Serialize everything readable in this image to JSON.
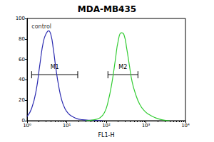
{
  "chart_data": {
    "type": "line",
    "title": "MDA-MB435",
    "x_label": "FL1-H",
    "log": "x",
    "xlim": [
      1,
      10000
    ],
    "xticks": [
      {
        "value": 1,
        "label": "10⁰"
      },
      {
        "value": 10,
        "label": "10¹"
      },
      {
        "value": 100,
        "label": "10²"
      },
      {
        "value": 1000,
        "label": "10³"
      },
      {
        "value": 10000,
        "label": "10⁴"
      }
    ],
    "ylim": [
      0,
      100
    ],
    "yticks": [
      0,
      20,
      40,
      60,
      80,
      100
    ],
    "grid": false,
    "series": [
      {
        "color": "#2b2bb0",
        "x": [
          1,
          1.3,
          1.7,
          2.1,
          2.6,
          3.1,
          3.5,
          4,
          4.6,
          5.3,
          6.2,
          7.5,
          9,
          11,
          14,
          18,
          25,
          35,
          50,
          80
        ],
        "values": [
          4,
          12,
          30,
          55,
          78,
          86,
          88,
          84,
          70,
          52,
          35,
          20,
          12,
          7,
          4,
          2,
          1,
          0.5,
          0.3,
          0
        ]
      },
      {
        "color": "#33cc33",
        "x": [
          30,
          50,
          70,
          90,
          110,
          140,
          170,
          200,
          240,
          280,
          330,
          380,
          450,
          550,
          700,
          900,
          1200,
          1700,
          2500,
          4000
        ],
        "values": [
          0,
          1,
          3,
          8,
          18,
          38,
          60,
          78,
          86,
          84,
          70,
          55,
          38,
          26,
          16,
          10,
          6,
          3,
          1,
          0
        ]
      }
    ],
    "annotations": [
      {
        "text": "control",
        "x": 1.3,
        "y": 92
      }
    ],
    "gates": [
      {
        "label": "M1",
        "x": [
          1.3,
          19
        ],
        "y": 45
      },
      {
        "label": "M2",
        "x": [
          110,
          630
        ],
        "y": 45
      }
    ]
  }
}
